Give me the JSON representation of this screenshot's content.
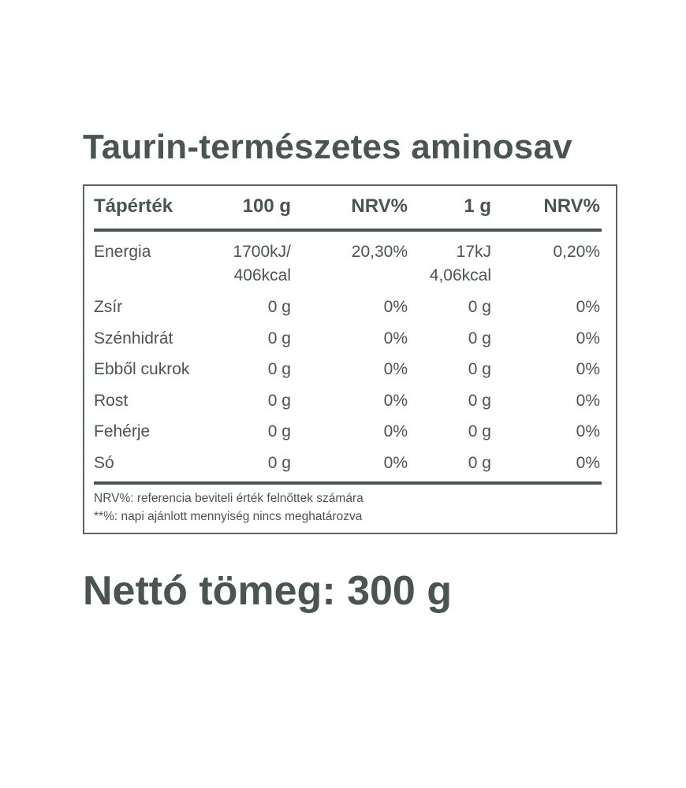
{
  "title": "Taurin-természetes aminosav",
  "table": {
    "headers": [
      "Tápérték",
      "100 g",
      "NRV%",
      "1 g",
      "NRV%"
    ],
    "rows": [
      {
        "name": "Energia",
        "per100": "1700kJ/",
        "per100_line2": "406kcal",
        "nrv100": "20,30%",
        "per1": "17kJ",
        "per1_line2": "4,06kcal",
        "nrv1": "0,20%"
      },
      {
        "name": "Zsír",
        "per100": "0 g",
        "nrv100": "0%",
        "per1": "0 g",
        "nrv1": "0%"
      },
      {
        "name": "Szénhidrát",
        "per100": "0 g",
        "nrv100": "0%",
        "per1": "0 g",
        "nrv1": "0%"
      },
      {
        "name": "Ebből cukrok",
        "per100": "0 g",
        "nrv100": "0%",
        "per1": "0 g",
        "nrv1": "0%"
      },
      {
        "name": "Rost",
        "per100": "0 g",
        "nrv100": "0%",
        "per1": "0 g",
        "nrv1": "0%"
      },
      {
        "name": "Fehérje",
        "per100": "0 g",
        "nrv100": "0%",
        "per1": "0 g",
        "nrv1": "0%"
      },
      {
        "name": "Só",
        "per100": "0 g",
        "nrv100": "0%",
        "per1": "0 g",
        "nrv1": "0%"
      }
    ],
    "footnotes": [
      "NRV%: referencia beviteli érték felnőttek számára",
      "**%: napi ajánlott mennyiség nincs meghatározva"
    ]
  },
  "net_weight": "Nettó tömeg: 300 g",
  "colors": {
    "text": "#4a5552"
  }
}
